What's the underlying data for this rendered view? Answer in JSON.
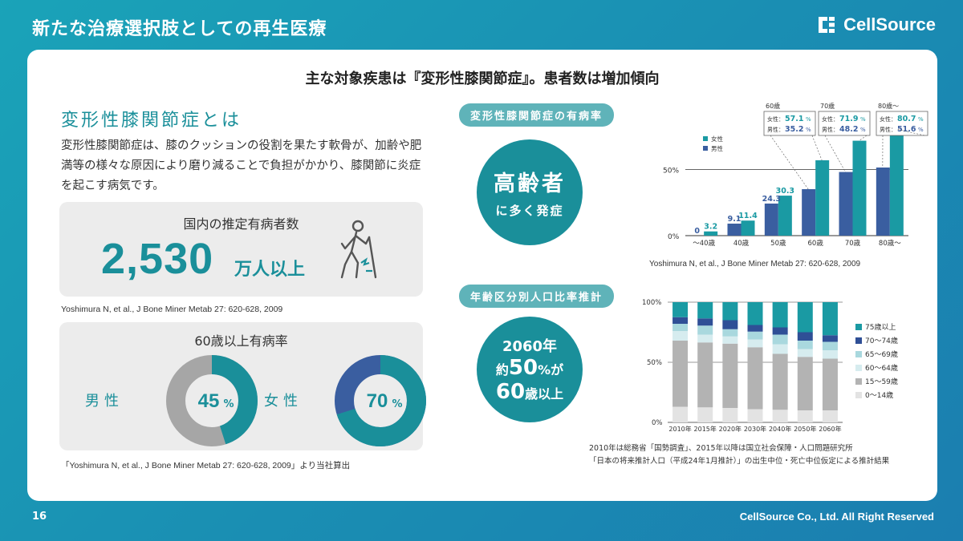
{
  "header": {
    "title": "新たな治療選択肢としての再生医療",
    "logo_text": "CellSource"
  },
  "footer": {
    "page": "16",
    "copyright": "CellSource Co., Ltd. All Right Reserved"
  },
  "main_heading": "主な対象疾患は『変形性膝関節症』。患者数は増加傾向",
  "left": {
    "section_title": "変形性膝関節症とは",
    "description": "変形性膝関節症は、膝のクッションの役割を果たす軟骨が、加齢や肥満等の様々な原因により磨り減ることで負担がかかり、膝関節に炎症を起こす病気です。",
    "patients": {
      "label": "国内の推定有病者数",
      "number": "2,530",
      "unit": "万人以上"
    },
    "cite1": "Yoshimura N, et al., J Bone Miner Metab 27: 620-628, 2009",
    "prevalence": {
      "label": "60歳以上有病率",
      "male_label": "男性",
      "male_value": "45",
      "male_fraction": 0.45,
      "female_label": "女性",
      "female_value": "70",
      "female_fraction": 0.7,
      "percent": "%"
    },
    "cite2": "「Yoshimura N, et al., J Bone Miner Metab 27: 620-628, 2009」より当社算出",
    "colors": {
      "teal": "#1a8f9a",
      "gray": "#a6a6a6",
      "blue": "#3a5ea0"
    }
  },
  "middle": {
    "pill1": "変形性膝関節症の有病率",
    "circle1_line1": "高齢者",
    "circle1_line2": "に多く発症",
    "pill2": "年齢区分別人口比率推計",
    "circle2_line1": "2060年",
    "circle2_line2a": "約",
    "circle2_line2b": "50",
    "circle2_line2c": "%が",
    "circle2_line3a": "60",
    "circle2_line3b": "歳以上"
  },
  "chart_data": [
    {
      "type": "bar",
      "categories": [
        "～40歳",
        "40歳",
        "50歳",
        "60歳",
        "70歳",
        "80歳～"
      ],
      "series": [
        {
          "name": "男性",
          "color": "#3a5ea0",
          "values": [
            0,
            9.1,
            24.3,
            35.2,
            48.2,
            51.6
          ]
        },
        {
          "name": "女性",
          "color": "#1a9aa3",
          "values": [
            3.2,
            11.4,
            30.3,
            57.1,
            71.9,
            80.7
          ]
        }
      ],
      "data_labels": [
        [
          "0",
          "9.1",
          "24.3",
          "",
          "",
          ""
        ],
        [
          "3.2",
          "11.4",
          "30.3",
          "",
          "",
          ""
        ]
      ],
      "yticks": [
        "0%",
        "50%"
      ],
      "ylim": [
        0,
        85
      ],
      "legend": {
        "female": "女性",
        "male": "男性",
        "position": "top-left"
      },
      "callouts": [
        {
          "age": "60歳",
          "female": "57.1",
          "male": "35.2"
        },
        {
          "age": "70歳",
          "female": "71.9",
          "male": "48.2"
        },
        {
          "age": "80歳～",
          "female": "80.7",
          "male": "51.6"
        }
      ],
      "callout_female_label": "女性：",
      "callout_male_label": "男性：",
      "percent": "%",
      "source": "Yoshimura N, et al., J Bone Miner Metab 27: 620-628, 2009"
    },
    {
      "type": "bar",
      "stacked": true,
      "categories": [
        "2010年",
        "2015年",
        "2020年",
        "2030年",
        "2040年",
        "2050年",
        "2060年"
      ],
      "series": [
        {
          "name": "0～14歳",
          "color": "#e3e3e3",
          "values": [
            13,
            12.5,
            12,
            11,
            10.5,
            10,
            10
          ]
        },
        {
          "name": "15～59歳",
          "color": "#b3b3b3",
          "values": [
            55,
            54,
            53.5,
            51.5,
            46.5,
            44.5,
            43
          ]
        },
        {
          "name": "60～64歳",
          "color": "#d6ecef",
          "values": [
            8,
            6.5,
            6,
            6.5,
            8,
            6.5,
            7
          ]
        },
        {
          "name": "65～69歳",
          "color": "#a9d8de",
          "values": [
            6,
            7.5,
            6,
            6.5,
            8,
            7,
            7
          ]
        },
        {
          "name": "70～74歳",
          "color": "#2f4f96",
          "values": [
            5.5,
            6,
            7.5,
            5.5,
            6,
            7,
            5.5
          ]
        },
        {
          "name": "75歳以上",
          "color": "#1a9aa3",
          "values": [
            12.5,
            13.5,
            15,
            19,
            21,
            25,
            27.5
          ]
        }
      ],
      "yticks": [
        "0%",
        "50%",
        "100%"
      ],
      "ylim": [
        0,
        100
      ],
      "legend_position": "right",
      "note_line1": "2010年は総務省「国勢調査」、2015年以降は国立社会保障・人口問題研究所",
      "note_line2": "「日本の将来推計人口（平成24年1月推計）」の出生中位・死亡中位仮定による推計結果"
    }
  ]
}
